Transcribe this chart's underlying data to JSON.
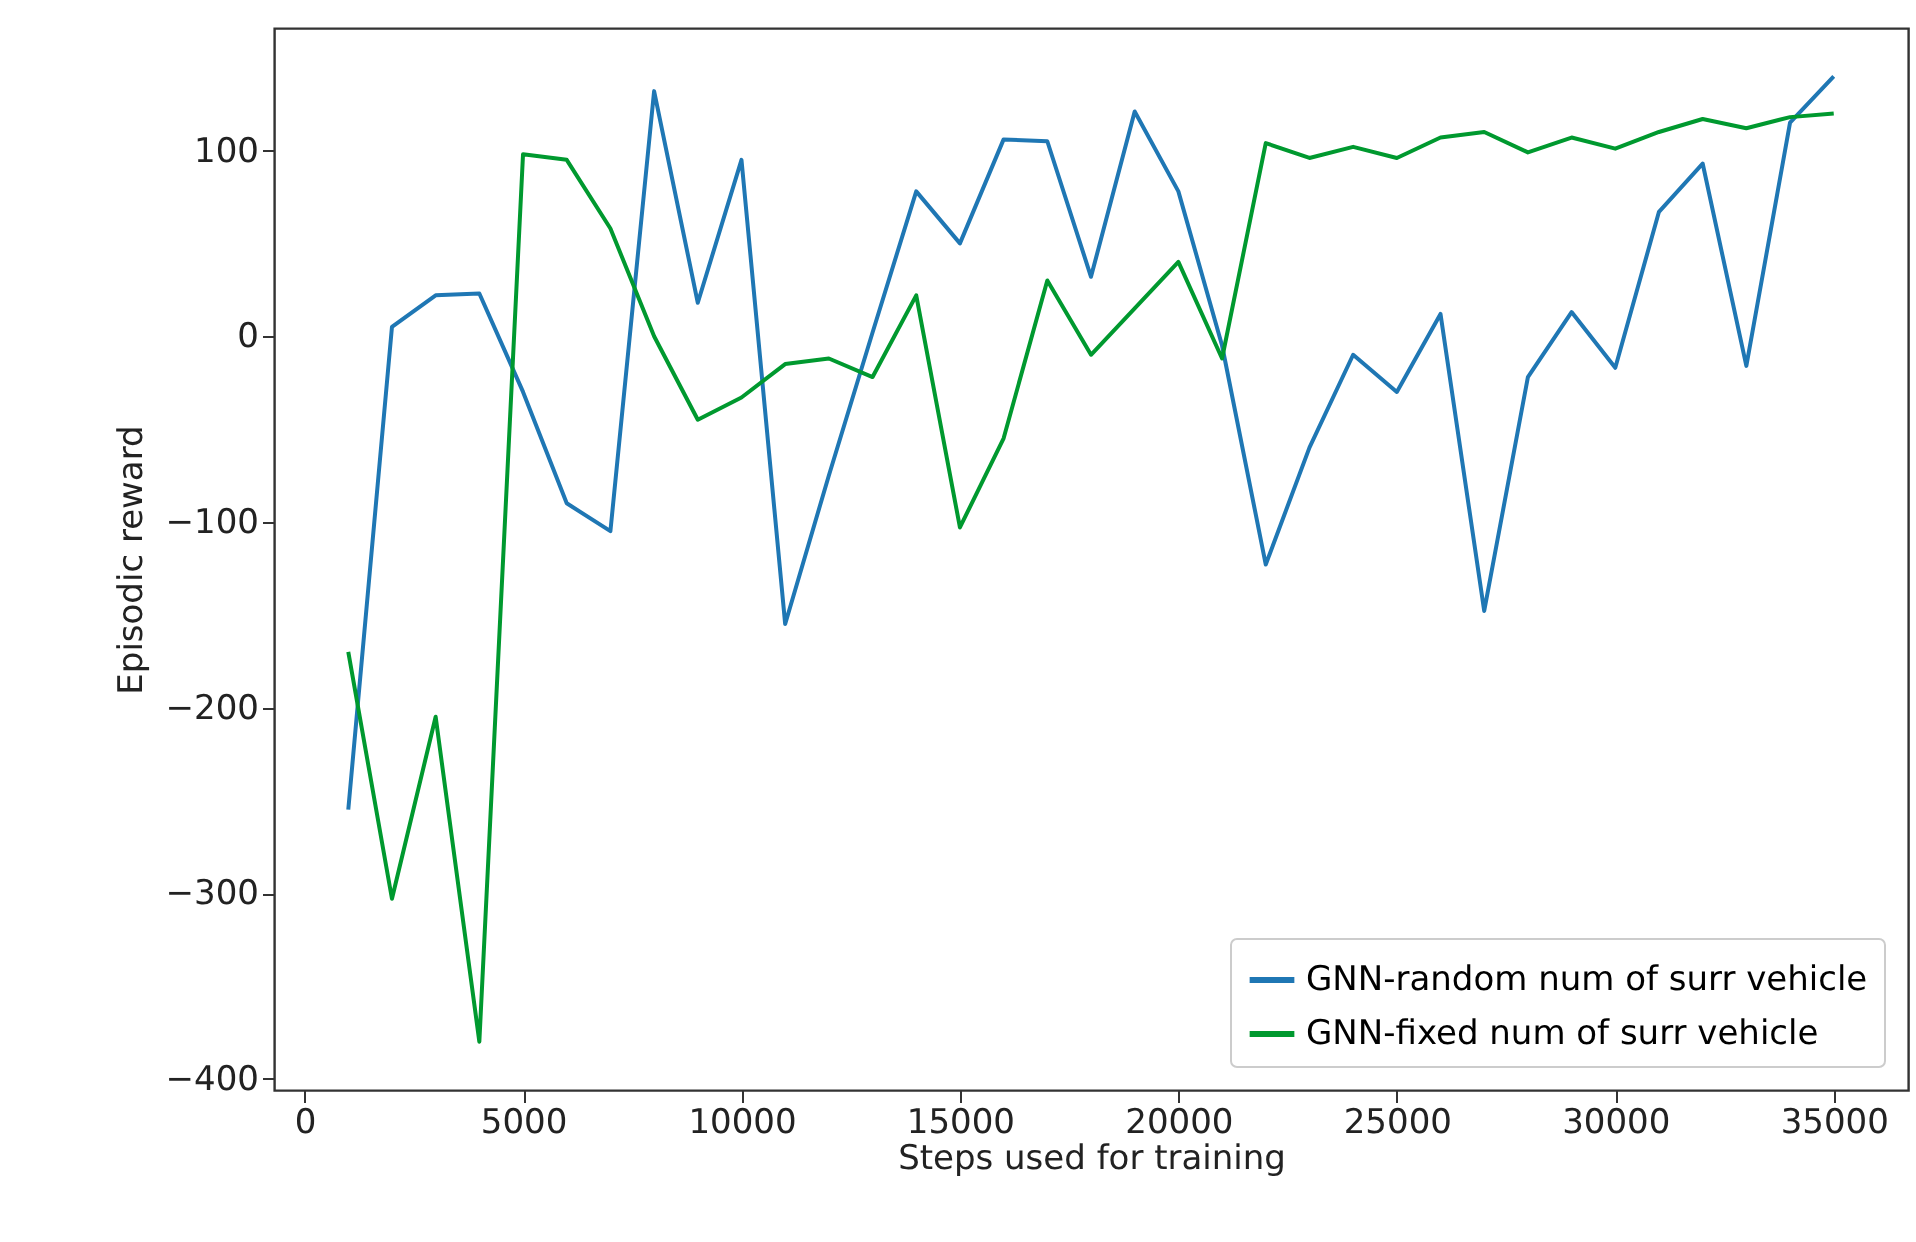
{
  "chart_data": {
    "type": "line",
    "xlabel": "Steps used for training",
    "ylabel": "Episodic reward",
    "x": [
      1000,
      2000,
      3000,
      4000,
      5000,
      6000,
      7000,
      8000,
      9000,
      10000,
      11000,
      12000,
      13000,
      14000,
      15000,
      16000,
      17000,
      18000,
      19000,
      20000,
      21000,
      22000,
      23000,
      24000,
      25000,
      26000,
      27000,
      28000,
      29000,
      30000,
      31000,
      32000,
      33000,
      34000,
      35000
    ],
    "series": [
      {
        "name": "GNN-random num of surr vehicle",
        "color": "#1f77b4",
        "values": [
          -255,
          5,
          22,
          23,
          -30,
          -90,
          -105,
          132,
          18,
          95,
          -155,
          -75,
          2,
          78,
          50,
          106,
          105,
          32,
          121,
          78,
          -5,
          -123,
          -60,
          -10,
          -30,
          12,
          -148,
          -22,
          13,
          -17,
          67,
          93,
          -16,
          115,
          140
        ]
      },
      {
        "name": "GNN-fixed num of surr vehicle",
        "color": "#00992f",
        "values": [
          -170,
          -303,
          -205,
          -380,
          98,
          95,
          58,
          0,
          -45,
          -33,
          -15,
          -12,
          -22,
          22,
          -103,
          -55,
          30,
          -10,
          15,
          40,
          -12,
          104,
          96,
          102,
          96,
          107,
          110,
          99,
          107,
          101,
          110,
          117,
          112,
          118,
          120
        ]
      }
    ],
    "xlim": [
      -700,
      36700
    ],
    "ylim": [
      -406,
      166
    ],
    "xticks": [
      0,
      5000,
      10000,
      15000,
      20000,
      25000,
      30000,
      35000
    ],
    "yticks": [
      -400,
      -300,
      -200,
      -100,
      0,
      100
    ],
    "grid": false,
    "legend": "bottom right",
    "line_style": "solid",
    "marker": "none"
  }
}
